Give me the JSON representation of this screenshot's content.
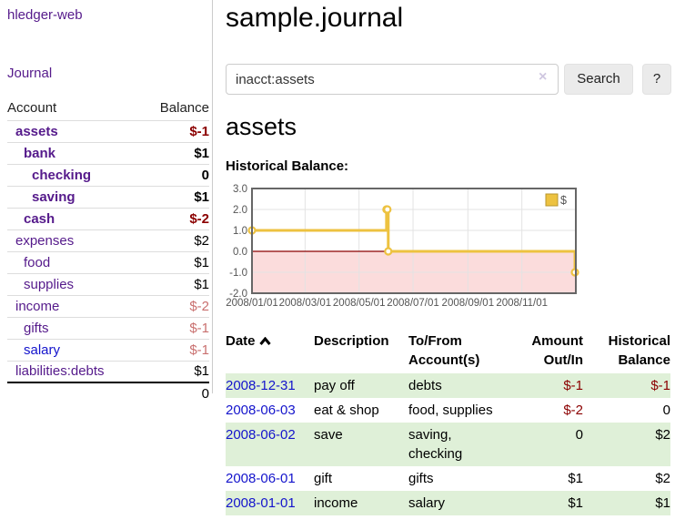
{
  "colors": {
    "accent_purple": "#551a8b",
    "link_blue": "#1414cc",
    "negative_strong": "#8b0000",
    "negative_soft": "#c9706f",
    "row_green": "#dff0d8",
    "series_gold": "#edc240"
  },
  "sidebar": {
    "app_title": "hledger-web",
    "journal_link": "Journal",
    "account_header": "Account",
    "balance_header": "Balance",
    "accounts": [
      {
        "name": "assets",
        "balance": "$-1"
      },
      {
        "name": "bank",
        "balance": "$1"
      },
      {
        "name": "checking",
        "balance": "0"
      },
      {
        "name": "saving",
        "balance": "$1"
      },
      {
        "name": "cash",
        "balance": "$-2"
      },
      {
        "name": "expenses",
        "balance": "$2"
      },
      {
        "name": "food",
        "balance": "$1"
      },
      {
        "name": "supplies",
        "balance": "$1"
      },
      {
        "name": "income",
        "balance": "$-2"
      },
      {
        "name": "gifts",
        "balance": "$-1"
      },
      {
        "name": "salary",
        "balance": "$-1"
      },
      {
        "name": "liabilities:debts",
        "balance": "$1"
      }
    ],
    "total": "0"
  },
  "main": {
    "title": "sample.journal",
    "search": {
      "value": "inacct:assets",
      "clear_icon": "×",
      "button_label": "Search",
      "help_label": "?"
    },
    "account_heading": "assets",
    "chart_label": "Historical Balance:"
  },
  "chart_data": {
    "type": "line",
    "step": true,
    "title": "Historical Balance",
    "legend": {
      "label": "$",
      "position": "top-right"
    },
    "xlim_days": [
      0,
      366
    ],
    "ylim": [
      -2,
      3
    ],
    "x_ticks": [
      {
        "label": "2008/01/01",
        "day": 0
      },
      {
        "label": "2008/03/01",
        "day": 60
      },
      {
        "label": "2008/05/01",
        "day": 121
      },
      {
        "label": "2008/07/01",
        "day": 182
      },
      {
        "label": "2008/09/01",
        "day": 244
      },
      {
        "label": "2008/11/01",
        "day": 305
      }
    ],
    "y_ticks": [
      {
        "label": "3.0",
        "value": 3
      },
      {
        "label": "2.0",
        "value": 2
      },
      {
        "label": "1.0",
        "value": 1
      },
      {
        "label": "0.0",
        "value": 0
      },
      {
        "label": "-1.0",
        "value": -1
      },
      {
        "label": "-2.0",
        "value": -2
      }
    ],
    "series": [
      {
        "name": "$",
        "color": "#edc240",
        "marker_fill": "#ffffff",
        "points": [
          {
            "date": "2008-01-01",
            "day": 0,
            "value": 1
          },
          {
            "date": "2008-06-01",
            "day": 152,
            "value": 2
          },
          {
            "date": "2008-06-02",
            "day": 153,
            "value": 2
          },
          {
            "date": "2008-06-03",
            "day": 154,
            "value": 0
          },
          {
            "date": "2008-12-31",
            "day": 365,
            "value": -1
          }
        ]
      }
    ],
    "negative_region_color": "#fbdcdc",
    "zero_line_color": "#8b0000",
    "grid_color": "#e3e3e3",
    "border_color": "#666666",
    "axis_text_color": "#545454"
  },
  "register": {
    "columns": {
      "date": "Date",
      "description": "Description",
      "accounts": "To/From Account(s)",
      "amount": "Amount Out/In",
      "balance": "Historical Balance"
    },
    "rows": [
      {
        "date": "2008-12-31",
        "description": "pay off",
        "accounts": "debts",
        "amount": "$-1",
        "balance": "$-1"
      },
      {
        "date": "2008-06-03",
        "description": "eat & shop",
        "accounts": "food, supplies",
        "amount": "$-2",
        "balance": "0"
      },
      {
        "date": "2008-06-02",
        "description": "save",
        "accounts": "saving, checking",
        "amount": "0",
        "balance": "$2"
      },
      {
        "date": "2008-06-01",
        "description": "gift",
        "accounts": "gifts",
        "amount": "$1",
        "balance": "$2"
      },
      {
        "date": "2008-01-01",
        "description": "income",
        "accounts": "salary",
        "amount": "$1",
        "balance": "$1"
      }
    ]
  }
}
